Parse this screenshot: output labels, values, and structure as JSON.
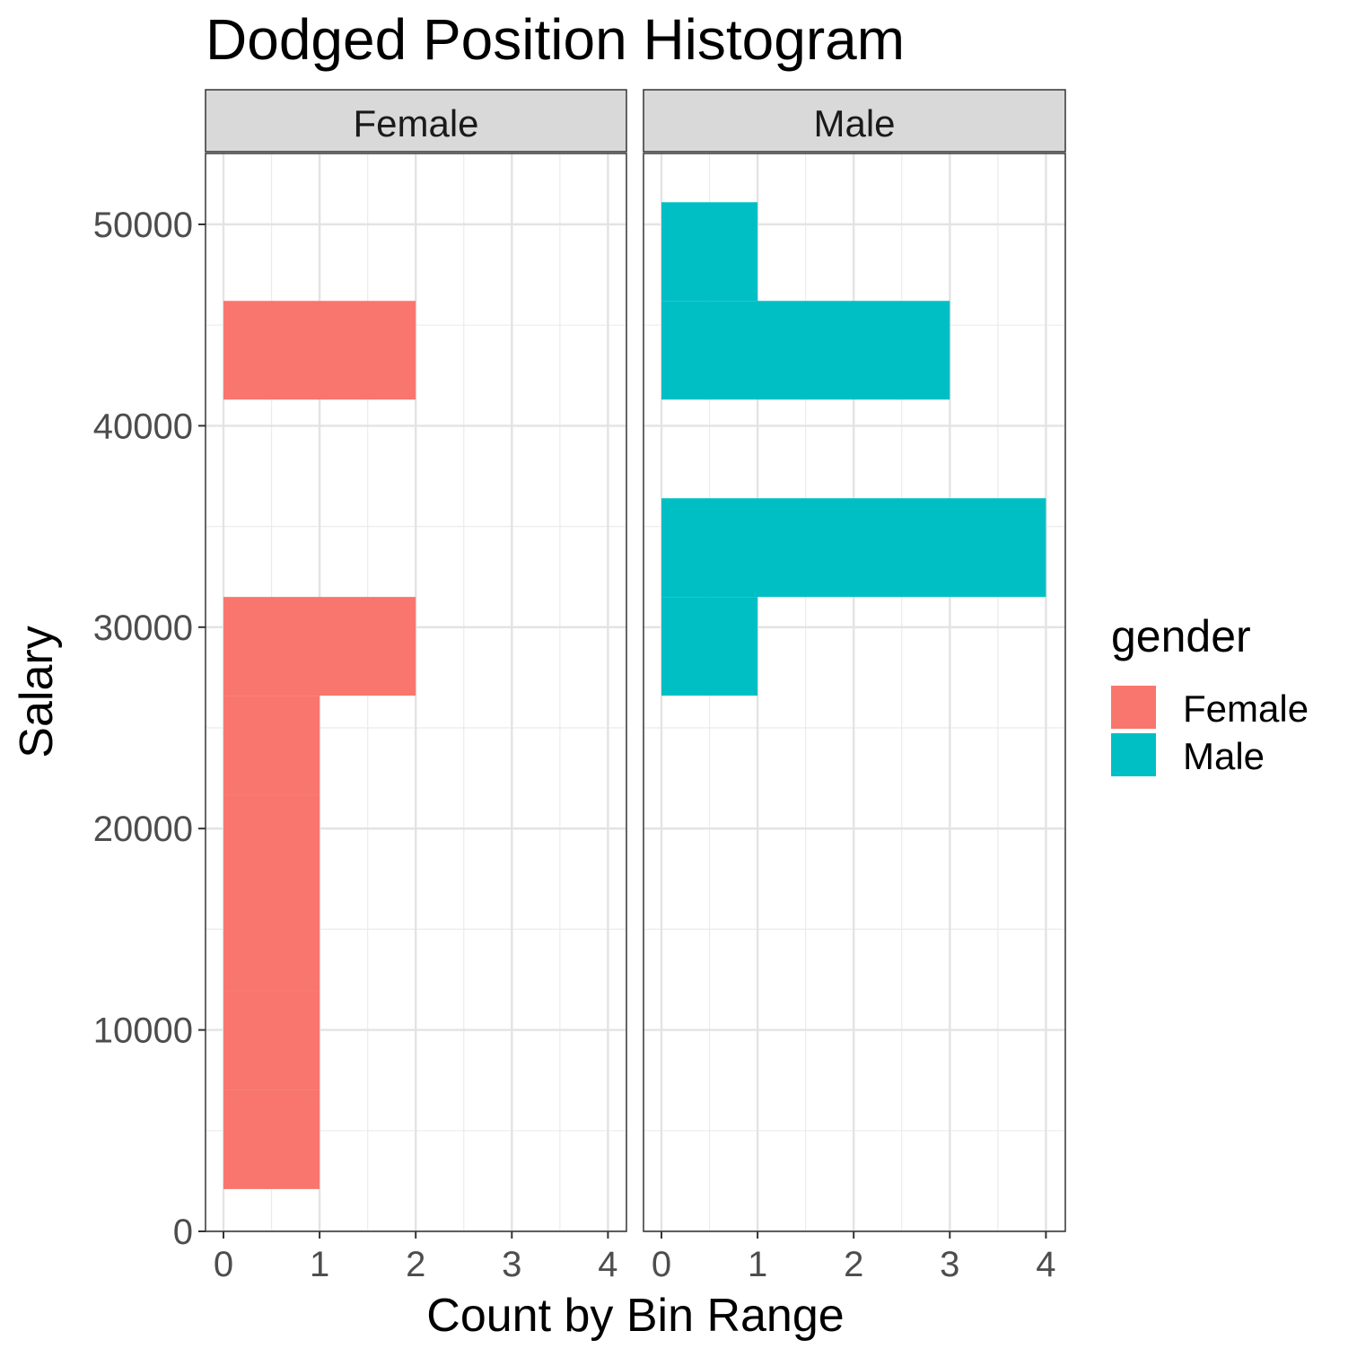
{
  "chart_data": {
    "type": "bar",
    "orientation": "horizontal",
    "title": "Dodged Position Histogram",
    "xlabel": "Count by Bin Range",
    "ylabel": "Salary",
    "xlim": [
      0,
      4
    ],
    "ylim": [
      0,
      52000
    ],
    "x_ticks": [
      "0",
      "1",
      "2",
      "3",
      "4"
    ],
    "y_ticks": [
      "0",
      "10000",
      "20000",
      "30000",
      "40000",
      "50000"
    ],
    "bin_width": 4900,
    "grid": true,
    "legend": {
      "title": "gender",
      "position": "right",
      "entries": [
        "Female",
        "Male"
      ]
    },
    "colors": {
      "Female": "#F8766D",
      "Male": "#00BFC4"
    },
    "panels": [
      {
        "name": "Female",
        "bins": [
          {
            "y_min": 2100,
            "y_max": 7000,
            "count": 1
          },
          {
            "y_min": 7000,
            "y_max": 11900,
            "count": 1
          },
          {
            "y_min": 11900,
            "y_max": 16800,
            "count": 1
          },
          {
            "y_min": 16800,
            "y_max": 21700,
            "count": 1
          },
          {
            "y_min": 21700,
            "y_max": 26600,
            "count": 1
          },
          {
            "y_min": 26600,
            "y_max": 31500,
            "count": 2
          },
          {
            "y_min": 31500,
            "y_max": 36400,
            "count": 0
          },
          {
            "y_min": 36400,
            "y_max": 41300,
            "count": 0
          },
          {
            "y_min": 41300,
            "y_max": 46200,
            "count": 2
          },
          {
            "y_min": 46200,
            "y_max": 51100,
            "count": 0
          }
        ]
      },
      {
        "name": "Male",
        "bins": [
          {
            "y_min": 2100,
            "y_max": 7000,
            "count": 0
          },
          {
            "y_min": 7000,
            "y_max": 11900,
            "count": 0
          },
          {
            "y_min": 11900,
            "y_max": 16800,
            "count": 0
          },
          {
            "y_min": 16800,
            "y_max": 21700,
            "count": 0
          },
          {
            "y_min": 21700,
            "y_max": 26600,
            "count": 0
          },
          {
            "y_min": 26600,
            "y_max": 31500,
            "count": 1
          },
          {
            "y_min": 31500,
            "y_max": 36400,
            "count": 4
          },
          {
            "y_min": 36400,
            "y_max": 41300,
            "count": 0
          },
          {
            "y_min": 41300,
            "y_max": 46200,
            "count": 3
          },
          {
            "y_min": 46200,
            "y_max": 51100,
            "count": 1
          }
        ]
      }
    ]
  }
}
